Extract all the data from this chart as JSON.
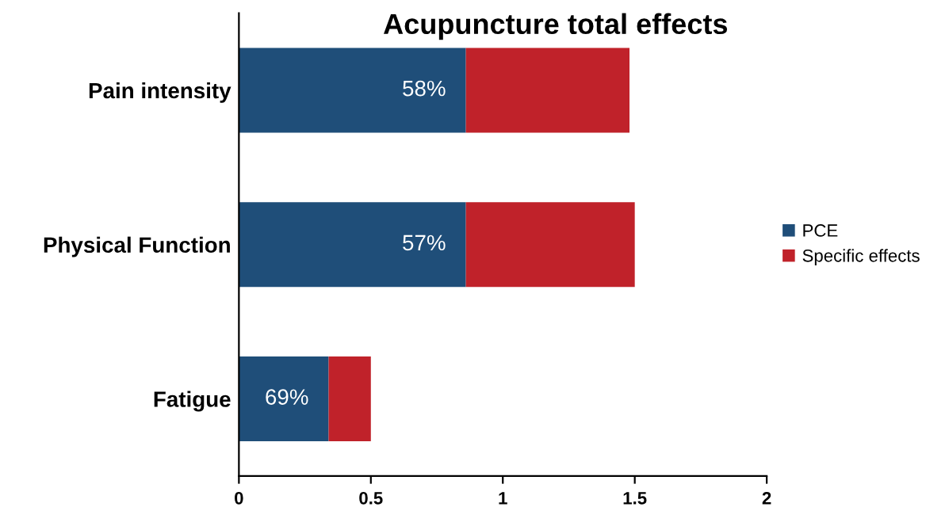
{
  "chart_data": {
    "type": "bar",
    "orientation": "horizontal",
    "stacked": true,
    "title": "Acupuncture total effects",
    "categories": [
      "Pain intensity",
      "Physical Function",
      "Fatigue"
    ],
    "series": [
      {
        "name": "PCE",
        "color": "#1f4e79",
        "values": [
          0.86,
          0.86,
          0.34
        ]
      },
      {
        "name": "Specific effects",
        "color": "#c0222a",
        "values": [
          0.62,
          0.64,
          0.16
        ]
      }
    ],
    "annotations": [
      "58%",
      "57%",
      "69%"
    ],
    "xlim": [
      0,
      2
    ],
    "xticks": [
      0,
      0.5,
      1,
      1.5,
      2
    ],
    "grid": false,
    "legend": "right"
  }
}
